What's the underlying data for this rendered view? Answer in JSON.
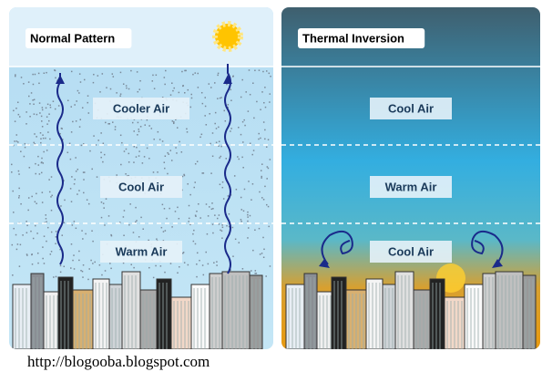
{
  "panels": [
    {
      "title": "Normal Pattern",
      "layers": [
        "Cooler Air",
        "Cool Air",
        "Warm Air"
      ]
    },
    {
      "title": "Thermal Inversion",
      "layers": [
        "Cool Air",
        "Warm Air",
        "Cool Air"
      ]
    }
  ],
  "footer": "http://blogooba.blogspot.com"
}
